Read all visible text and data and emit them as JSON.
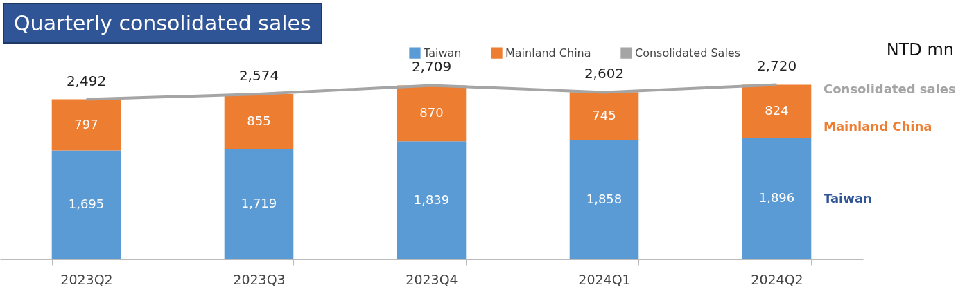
{
  "chart_data": {
    "type": "bar",
    "title": "Quarterly consolidated sales",
    "ylabel": "NTD mn",
    "stacked": true,
    "tick_labels": "x",
    "legend": "top",
    "categories": [
      "2023Q2",
      "2023Q3",
      "2023Q4",
      "2024Q1",
      "2024Q2"
    ],
    "series": [
      {
        "name": "Taiwan",
        "color": "#5b9bd5",
        "values": [
          1695,
          1719,
          1839,
          1858,
          1896
        ],
        "value_labels": [
          "1,695",
          "1,719",
          "1,839",
          "1,858",
          "1,896"
        ]
      },
      {
        "name": "Mainland China",
        "color": "#ed7d31",
        "values": [
          797,
          855,
          870,
          745,
          824
        ],
        "value_labels": [
          "797",
          "855",
          "870",
          "745",
          "824"
        ]
      },
      {
        "name": "Consolidated Sales",
        "type": "line",
        "color": "#a5a5a5",
        "values": [
          2492,
          2574,
          2709,
          2602,
          2720
        ],
        "value_labels": [
          "2,492",
          "2,574",
          "2,709",
          "2,602",
          "2,720"
        ]
      }
    ],
    "annotations": [
      "Consolidated sales",
      "Mainland China",
      "Taiwan"
    ]
  }
}
